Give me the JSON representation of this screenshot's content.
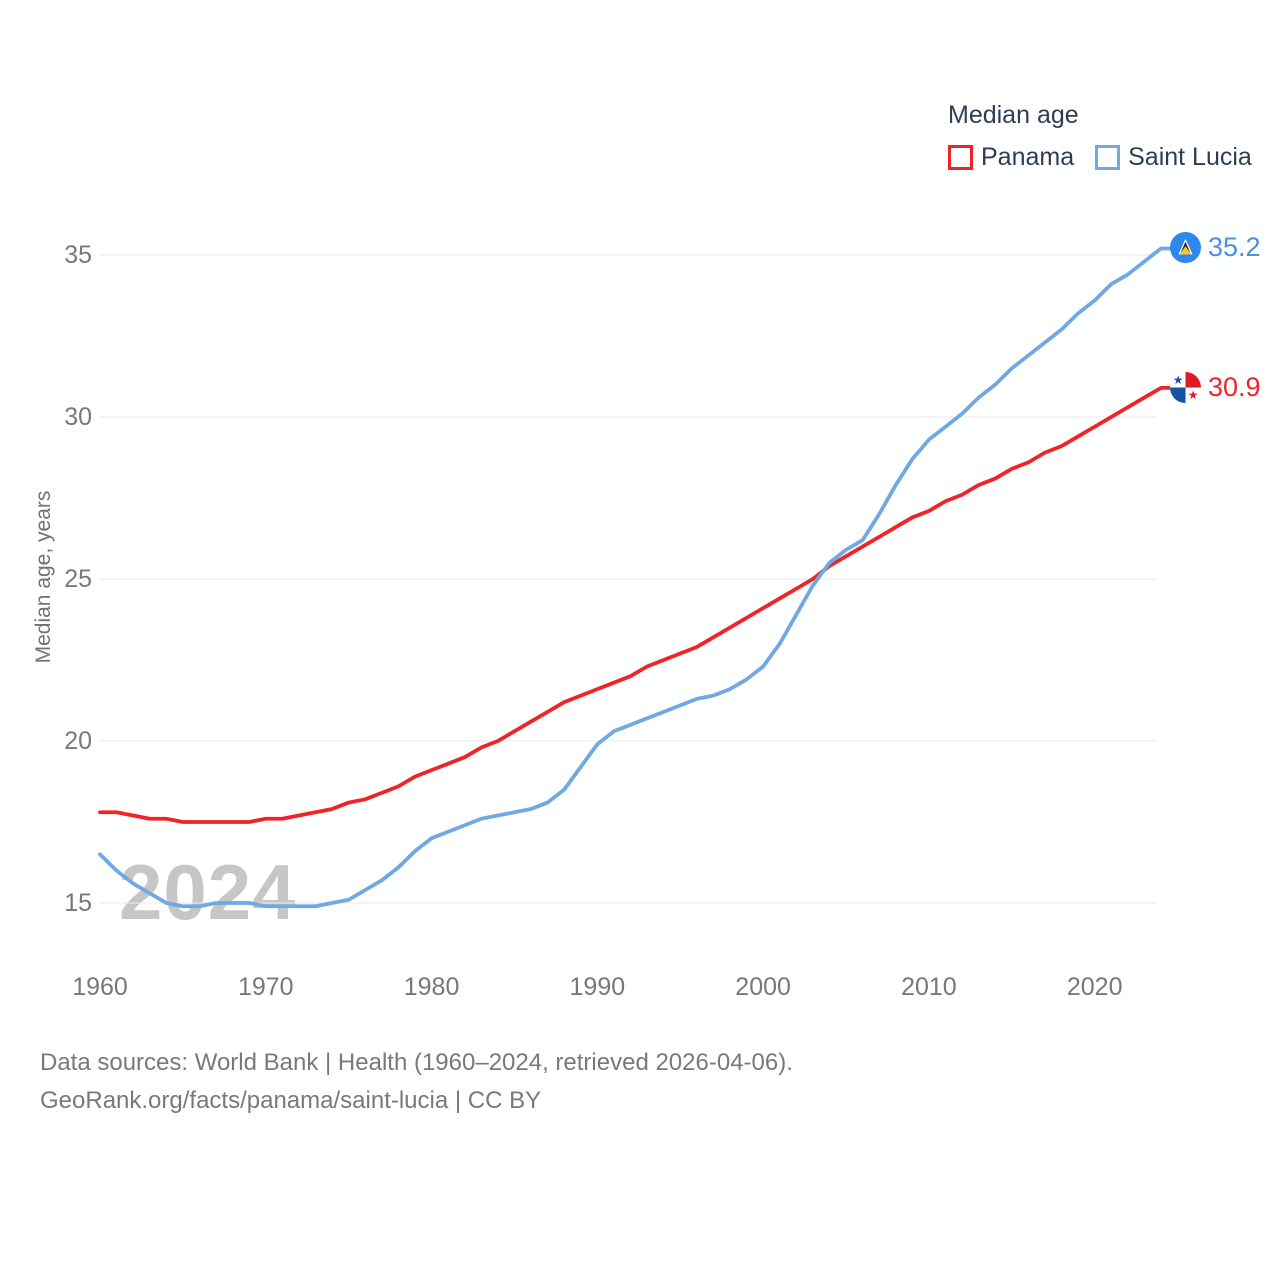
{
  "legend": {
    "title": "Median age",
    "items": [
      {
        "label": "Panama",
        "color": "#ee2429"
      },
      {
        "label": "Saint Lucia",
        "color": "#6fa9e4"
      }
    ]
  },
  "y_axis": {
    "title": "Median age, years",
    "ticks": [
      15,
      20,
      25,
      30,
      35
    ]
  },
  "x_axis": {
    "ticks": [
      1960,
      1970,
      1980,
      1990,
      2000,
      2010,
      2020
    ]
  },
  "watermark": "2024",
  "end_labels": [
    {
      "series": "Saint Lucia",
      "value": "35.2",
      "color": "#4a90e2",
      "flag_icon": "saint-lucia-flag-icon"
    },
    {
      "series": "Panama",
      "value": "30.9",
      "color": "#ee2429",
      "flag_icon": "panama-flag-icon"
    }
  ],
  "footer": {
    "line1": "Data sources: World Bank | Health (1960–2024, retrieved 2026-04-06).",
    "line2": "GeoRank.org/facts/panama/saint-lucia | CC BY"
  },
  "colors": {
    "panama_line": "#ee2429",
    "saint_lucia_line": "#6fa9e4",
    "gridline": "#e8e8e8",
    "tick_text": "#75787d",
    "legend_text": "#2e3d54",
    "watermark": "#c6c6c6"
  },
  "chart_data": {
    "type": "line",
    "title": "Median age",
    "xlabel": "",
    "ylabel": "Median age, years",
    "xlim": [
      1960,
      2024
    ],
    "ylim": [
      13.5,
      36.5
    ],
    "grid": true,
    "legend_position": "top-right",
    "x": [
      1960,
      1961,
      1962,
      1963,
      1964,
      1965,
      1966,
      1967,
      1968,
      1969,
      1970,
      1971,
      1972,
      1973,
      1974,
      1975,
      1976,
      1977,
      1978,
      1979,
      1980,
      1981,
      1982,
      1983,
      1984,
      1985,
      1986,
      1987,
      1988,
      1989,
      1990,
      1991,
      1992,
      1993,
      1994,
      1995,
      1996,
      1997,
      1998,
      1999,
      2000,
      2001,
      2002,
      2003,
      2004,
      2005,
      2006,
      2007,
      2008,
      2009,
      2010,
      2011,
      2012,
      2013,
      2014,
      2015,
      2016,
      2017,
      2018,
      2019,
      2020,
      2021,
      2022,
      2023,
      2024
    ],
    "series": [
      {
        "name": "Panama",
        "color": "#ee2429",
        "end_value": 30.9,
        "values": [
          17.8,
          17.8,
          17.7,
          17.6,
          17.6,
          17.5,
          17.5,
          17.5,
          17.5,
          17.5,
          17.6,
          17.6,
          17.7,
          17.8,
          17.9,
          18.1,
          18.2,
          18.4,
          18.6,
          18.9,
          19.1,
          19.3,
          19.5,
          19.8,
          20.0,
          20.3,
          20.6,
          20.9,
          21.2,
          21.4,
          21.6,
          21.8,
          22.0,
          22.3,
          22.5,
          22.7,
          22.9,
          23.2,
          23.5,
          23.8,
          24.1,
          24.4,
          24.7,
          25.0,
          25.4,
          25.7,
          26.0,
          26.3,
          26.6,
          26.9,
          27.1,
          27.4,
          27.6,
          27.9,
          28.1,
          28.4,
          28.6,
          28.9,
          29.1,
          29.4,
          29.7,
          30.0,
          30.3,
          30.6,
          30.9
        ]
      },
      {
        "name": "Saint Lucia",
        "color": "#6fa9e4",
        "end_value": 35.2,
        "values": [
          16.5,
          16.0,
          15.6,
          15.3,
          15.0,
          14.9,
          14.9,
          15.0,
          15.0,
          15.0,
          14.9,
          14.9,
          14.9,
          14.9,
          15.0,
          15.1,
          15.4,
          15.7,
          16.1,
          16.6,
          17.0,
          17.2,
          17.4,
          17.6,
          17.7,
          17.8,
          17.9,
          18.1,
          18.5,
          19.2,
          19.9,
          20.3,
          20.5,
          20.7,
          20.9,
          21.1,
          21.3,
          21.4,
          21.6,
          21.9,
          22.3,
          23.0,
          23.9,
          24.8,
          25.5,
          25.9,
          26.2,
          27.0,
          27.9,
          28.7,
          29.3,
          29.7,
          30.1,
          30.6,
          31.0,
          31.5,
          31.9,
          32.3,
          32.7,
          33.2,
          33.6,
          34.1,
          34.4,
          34.8,
          35.2
        ]
      }
    ]
  }
}
